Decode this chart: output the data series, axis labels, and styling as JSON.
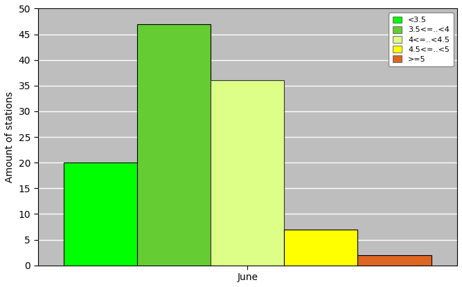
{
  "xlabel": "June",
  "ylabel": "Amount of stations",
  "plot_bg_color": "#bebebe",
  "fig_bg_color": "#ffffff",
  "ylim": [
    0,
    50
  ],
  "yticks": [
    0,
    5,
    10,
    15,
    20,
    25,
    30,
    35,
    40,
    45,
    50
  ],
  "bars": [
    {
      "label": "<3.5",
      "value": 20,
      "color": "#00ff00",
      "edge_color": "#000000"
    },
    {
      "label": "3.5<=..<4",
      "value": 47,
      "color": "#66cc33",
      "edge_color": "#000000"
    },
    {
      "label": "4<=..<4.5",
      "value": 36,
      "color": "#ddff88",
      "edge_color": "#333333"
    },
    {
      "label": "4.5<=..<5",
      "value": 7,
      "color": "#ffff00",
      "edge_color": "#000000"
    },
    {
      "label": ">=5",
      "value": 2,
      "color": "#dd6622",
      "edge_color": "#000000"
    }
  ],
  "bar_width": 0.85,
  "bar_spacing": 0.0,
  "legend_fontsize": 8,
  "ylabel_fontsize": 10,
  "xlabel_fontsize": 10,
  "tick_fontsize": 10,
  "grid_color": "#ffffff",
  "grid_linewidth": 1.0
}
